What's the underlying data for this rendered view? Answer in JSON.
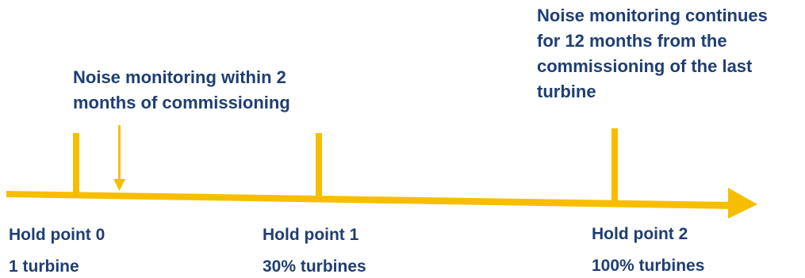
{
  "colors": {
    "accent": "#f7be00",
    "text": "#1f3e73"
  },
  "annotations": {
    "early_monitoring": [
      "Noise monitoring within 2",
      "months of commissioning"
    ],
    "continued_monitoring": [
      "Noise monitoring continues",
      "for 12 months from the",
      "commissioning of the last",
      "turbine"
    ]
  },
  "hold_points": [
    {
      "title": "Hold point 0",
      "detail": "1 turbine"
    },
    {
      "title": "Hold point 1",
      "detail": "30% turbines"
    },
    {
      "title": "Hold point 2",
      "detail": "100% turbines"
    }
  ]
}
